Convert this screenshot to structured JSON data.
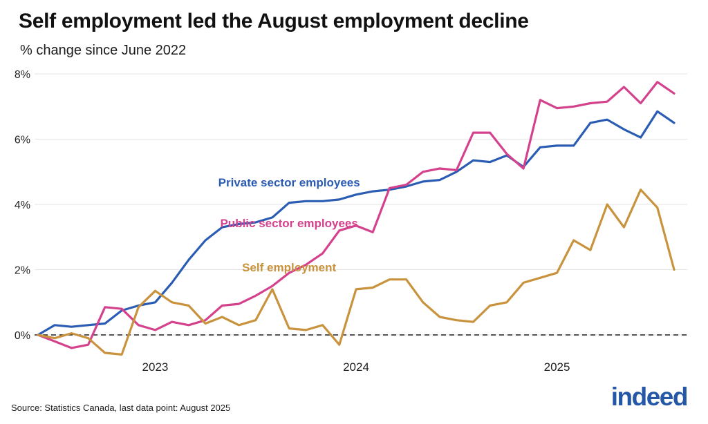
{
  "title": "Self employment led the August employment decline",
  "subtitle": "% change since June 2022",
  "source_note": "Source: Statistics Canada, last data point: August 2025",
  "logo_text": "indeed",
  "colors": {
    "private": "#2b5cb3",
    "public": "#d4418c",
    "self": "#c9923c",
    "grid": "#e3e3e3",
    "zero_line": "#1a1a1a",
    "axis_text": "#222222",
    "logo": "#2557a7"
  },
  "chart_data": {
    "type": "line",
    "title": "Self employment led the August employment decline",
    "subtitle": "% change since June 2022",
    "ylabel": "% change since June 2022",
    "xlabel": "",
    "grid": true,
    "legend_position": "inline",
    "ylim": [
      -1,
      8
    ],
    "yticks": [
      0,
      2,
      4,
      6,
      8
    ],
    "ytick_labels": [
      "0%",
      "2%",
      "4%",
      "6%",
      "8%"
    ],
    "xticks": [
      {
        "label": "2023",
        "month_index": 7
      },
      {
        "label": "2024",
        "month_index": 19
      },
      {
        "label": "2025",
        "month_index": 31
      }
    ],
    "zero_line": {
      "style": "dashed",
      "value": 0
    },
    "x": [
      "2022-06",
      "2022-07",
      "2022-08",
      "2022-09",
      "2022-10",
      "2022-11",
      "2022-12",
      "2023-01",
      "2023-02",
      "2023-03",
      "2023-04",
      "2023-05",
      "2023-06",
      "2023-07",
      "2023-08",
      "2023-09",
      "2023-10",
      "2023-11",
      "2023-12",
      "2024-01",
      "2024-02",
      "2024-03",
      "2024-04",
      "2024-05",
      "2024-06",
      "2024-07",
      "2024-08",
      "2024-09",
      "2024-10",
      "2024-11",
      "2024-12",
      "2025-01",
      "2025-02",
      "2025-03",
      "2025-04",
      "2025-05",
      "2025-06",
      "2025-07",
      "2025-08"
    ],
    "series": [
      {
        "name": "Private sector employees",
        "color_key": "private",
        "values": [
          0.0,
          0.3,
          0.25,
          0.3,
          0.35,
          0.75,
          0.9,
          1.0,
          1.6,
          2.3,
          2.9,
          3.3,
          3.4,
          3.45,
          3.6,
          4.05,
          4.1,
          4.1,
          4.15,
          4.3,
          4.4,
          4.45,
          4.55,
          4.7,
          4.75,
          5.0,
          5.35,
          5.3,
          5.5,
          5.15,
          5.75,
          5.8,
          5.8,
          6.5,
          6.6,
          6.3,
          6.05,
          6.85,
          6.5
        ]
      },
      {
        "name": "Public sector employees",
        "color_key": "public",
        "values": [
          0.0,
          -0.2,
          -0.4,
          -0.3,
          0.85,
          0.8,
          0.3,
          0.15,
          0.4,
          0.3,
          0.45,
          0.9,
          0.95,
          1.2,
          1.5,
          1.9,
          2.15,
          2.5,
          3.2,
          3.35,
          3.15,
          4.5,
          4.6,
          5.0,
          5.1,
          5.05,
          6.2,
          6.2,
          5.55,
          5.1,
          7.2,
          6.95,
          7.0,
          7.1,
          7.15,
          7.6,
          7.1,
          7.75,
          7.4
        ]
      },
      {
        "name": "Self employment",
        "color_key": "self",
        "values": [
          0.0,
          -0.1,
          0.05,
          -0.1,
          -0.55,
          -0.6,
          0.85,
          1.35,
          1.0,
          0.9,
          0.35,
          0.55,
          0.3,
          0.45,
          1.4,
          0.2,
          0.15,
          0.3,
          -0.3,
          1.4,
          1.45,
          1.7,
          1.7,
          1.0,
          0.55,
          0.45,
          0.4,
          0.9,
          1.0,
          1.6,
          1.75,
          1.9,
          2.9,
          2.6,
          4.0,
          3.3,
          4.45,
          3.9,
          2.0
        ]
      }
    ],
    "annotations": [
      {
        "text": "Private sector employees",
        "series": "private",
        "x_index": 15,
        "value": 4.55
      },
      {
        "text": "Public sector employees",
        "series": "public",
        "x_index": 15,
        "value": 3.3
      },
      {
        "text": "Self employment",
        "series": "self",
        "x_index": 15,
        "value": 1.95
      }
    ]
  }
}
